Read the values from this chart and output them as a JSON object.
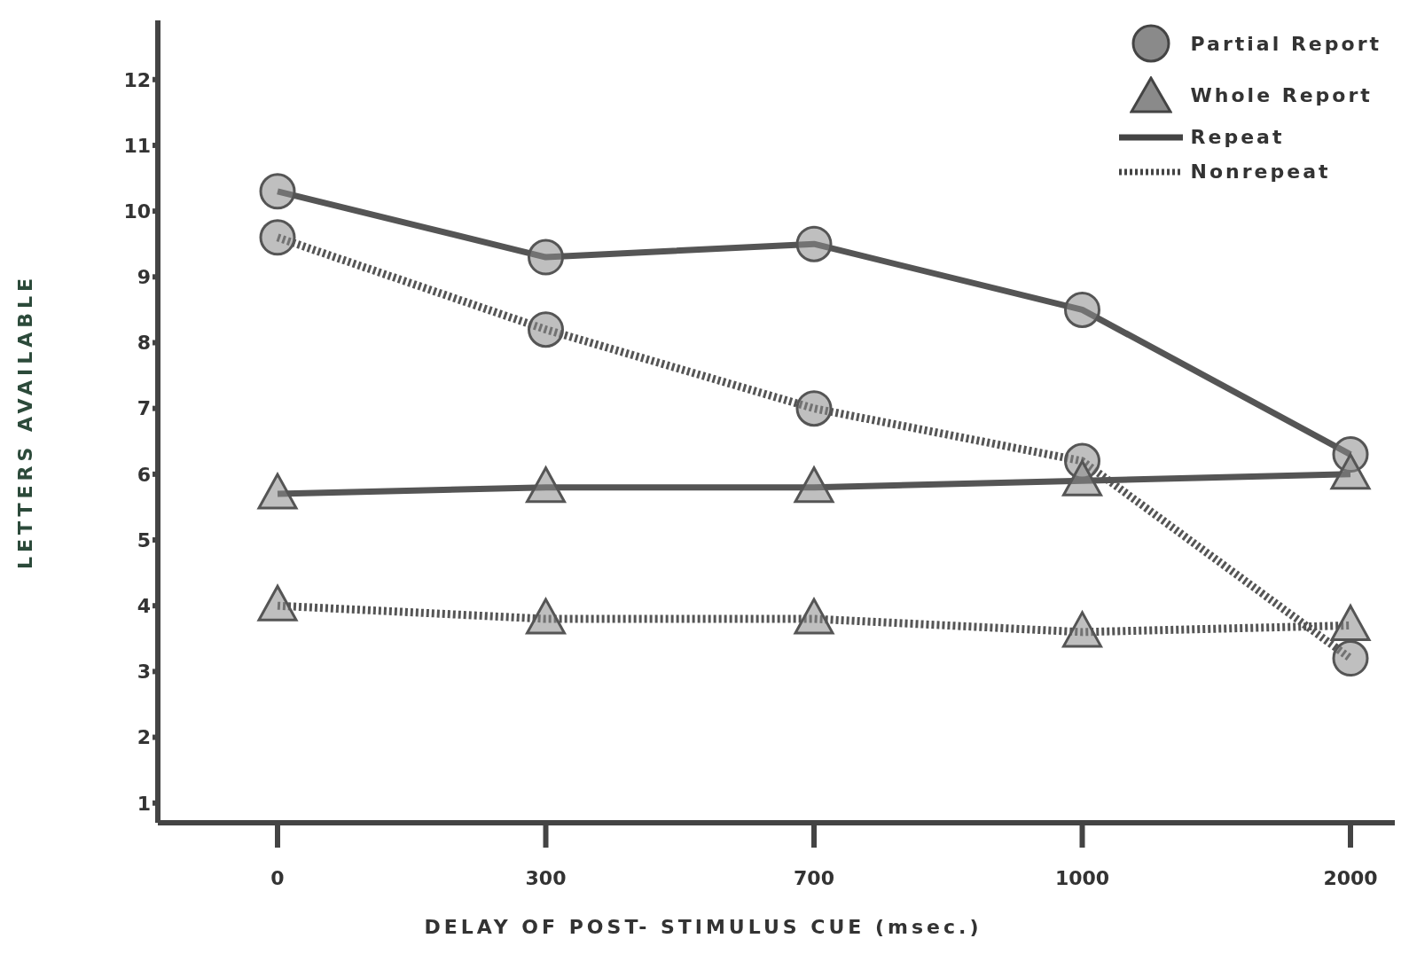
{
  "chart_data": {
    "type": "line",
    "xlabel": "DELAY OF POST- STIMULUS CUE (msec.)",
    "ylabel": "LETTERS AVAILABLE",
    "categories": [
      "0",
      "300",
      "700",
      "1000",
      "2000"
    ],
    "ylim": [
      0.7,
      12.9
    ],
    "yticks": [
      1,
      2,
      3,
      4,
      5,
      6,
      7,
      8,
      9,
      10,
      11,
      12
    ],
    "annotations": [
      "Partial Report",
      "Whole Report",
      "Repeat",
      "Nonrepeat"
    ],
    "series": [
      {
        "color": "#555555",
        "marker": "circle",
        "line_style": "solid",
        "values": [
          10.3,
          9.3,
          9.5,
          8.5,
          6.3
        ]
      },
      {
        "color": "#555555",
        "marker": "circle",
        "line_style": "dotted",
        "values": [
          9.6,
          8.2,
          7.0,
          6.2,
          3.2
        ]
      },
      {
        "color": "#555555",
        "marker": "triangle",
        "line_style": "solid",
        "values": [
          5.7,
          5.8,
          5.8,
          5.9,
          6.0
        ]
      },
      {
        "color": "#555555",
        "marker": "triangle",
        "line_style": "dotted",
        "values": [
          4.0,
          3.8,
          3.8,
          3.6,
          3.7
        ]
      }
    ]
  }
}
